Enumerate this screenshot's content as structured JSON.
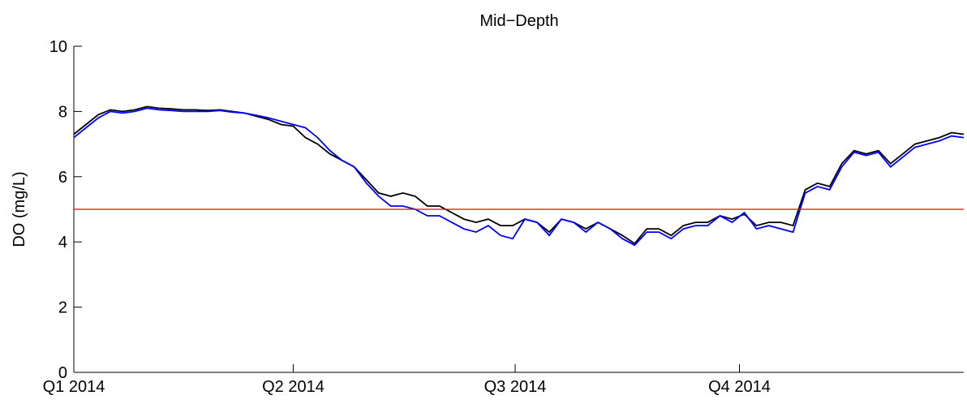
{
  "chart_data": {
    "type": "line",
    "title": "Mid−Depth",
    "y_label": "DO (mg/L)",
    "x": [
      0,
      5,
      10,
      15,
      20,
      25,
      30,
      35,
      40,
      45,
      50,
      55,
      60,
      65,
      70,
      75,
      80,
      85,
      90,
      95,
      100,
      105,
      110,
      115,
      120,
      125,
      130,
      135,
      140,
      145,
      150,
      155,
      160,
      165,
      170,
      175,
      180,
      185,
      190,
      195,
      200,
      205,
      210,
      215,
      220,
      225,
      230,
      235,
      240,
      245,
      250,
      255,
      260,
      265,
      270,
      275,
      280,
      285,
      290,
      295,
      300,
      305,
      310,
      315,
      320,
      325,
      330,
      335,
      340,
      345,
      350,
      355,
      360,
      365
    ],
    "series": [
      {
        "color": "#000000",
        "values": [
          7.3,
          7.6,
          7.9,
          8.05,
          8.0,
          8.05,
          8.15,
          8.1,
          8.08,
          8.05,
          8.05,
          8.03,
          8.05,
          8.0,
          7.95,
          7.85,
          7.75,
          7.6,
          7.55,
          7.2,
          7.0,
          6.7,
          6.5,
          6.3,
          5.9,
          5.5,
          5.4,
          5.5,
          5.4,
          5.1,
          5.1,
          4.9,
          4.7,
          4.6,
          4.7,
          4.5,
          4.5,
          4.7,
          4.6,
          4.3,
          4.7,
          4.6,
          4.4,
          4.6,
          4.4,
          4.2,
          3.95,
          4.4,
          4.4,
          4.2,
          4.5,
          4.6,
          4.6,
          4.8,
          4.7,
          4.85,
          4.5,
          4.6,
          4.6,
          4.5,
          5.6,
          5.8,
          5.7,
          6.4,
          6.8,
          6.7,
          6.8,
          6.4,
          6.7,
          7.0,
          7.1,
          7.2,
          7.35,
          7.3
        ]
      },
      {
        "color": "#0000ff",
        "values": [
          7.2,
          7.5,
          7.8,
          8.0,
          7.95,
          8.0,
          8.1,
          8.05,
          8.03,
          8.0,
          8.0,
          8.0,
          8.03,
          7.98,
          7.95,
          7.88,
          7.8,
          7.7,
          7.6,
          7.5,
          7.2,
          6.8,
          6.5,
          6.3,
          5.8,
          5.4,
          5.1,
          5.1,
          5.0,
          4.8,
          4.8,
          4.6,
          4.4,
          4.3,
          4.5,
          4.2,
          4.1,
          4.7,
          4.6,
          4.2,
          4.7,
          4.6,
          4.3,
          4.6,
          4.4,
          4.1,
          3.9,
          4.3,
          4.3,
          4.1,
          4.4,
          4.5,
          4.5,
          4.8,
          4.6,
          4.9,
          4.4,
          4.5,
          4.4,
          4.3,
          5.5,
          5.7,
          5.6,
          6.3,
          6.75,
          6.65,
          6.75,
          6.3,
          6.6,
          6.9,
          7.0,
          7.1,
          7.25,
          7.2
        ]
      }
    ],
    "reference_line": {
      "value": 5,
      "color": "#ff0000"
    },
    "xlim": [
      0,
      365
    ],
    "xticks": [
      {
        "value": 0,
        "label": "Q1 2014"
      },
      {
        "value": 90,
        "label": "Q2 2014"
      },
      {
        "value": 181,
        "label": "Q3 2014"
      },
      {
        "value": 273,
        "label": "Q4 2014"
      }
    ],
    "ylim": [
      0,
      10
    ],
    "yticks": [
      0,
      2,
      4,
      6,
      8,
      10
    ]
  }
}
